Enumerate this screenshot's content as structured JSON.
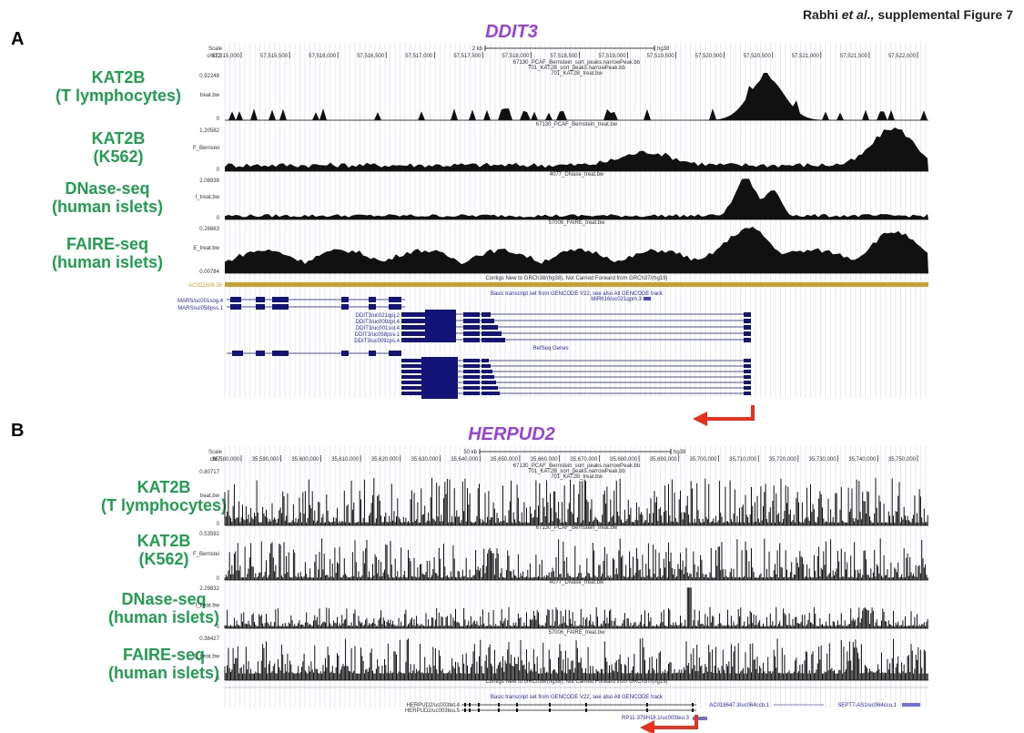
{
  "header": {
    "author": "Rabhi",
    "etal": "et al.,",
    "label": "supplemental Figure 7"
  },
  "panels": [
    {
      "letter": "A",
      "gene": "DDIT3",
      "chrom": "chr12:",
      "scale_label": "2 kb",
      "assembly": "hg38",
      "ticks": [
        "57,515,000",
        "57,515,500",
        "57,516,000",
        "57,516,500",
        "57,517,000",
        "57,517,500",
        "57,518,000",
        "57,518,500",
        "57,519,000",
        "57,519,500",
        "57,520,000",
        "57,520,500",
        "57,521,000",
        "57,521,500",
        "57,522,000"
      ],
      "header_lines": [
        "67130_PCAF_Bernstein_sort_peaks.narrowPeak.bb",
        "701_KAT2B_sort_peaks.narrowPeak.bb",
        "701_KAT2B_treat.bw"
      ],
      "tracks": [
        {
          "name": "KAT2B",
          "sub": "(T lymphocytes)",
          "max": "0.92248",
          "min": "0",
          "file": "701_KAT2B_treat.bw",
          "side": "treat.bw"
        },
        {
          "name": "KAT2B",
          "sub": "(K562)",
          "max": "1.20582",
          "min": "0",
          "file": "67130_PCAF_Bernstein_treat.bw",
          "side": "F_Bernstei"
        },
        {
          "name": "DNase-seq",
          "sub": "(human islets)",
          "max": "2.08938",
          "min": "0",
          "file": "4077_DNase_treat.bw",
          "side": "I_treat.bw"
        },
        {
          "name": "FAIRE-seq",
          "sub": "(human islets)",
          "max": "0.26663",
          "min": "0.00784",
          "file": "57006_FAIRE_treat.bw",
          "side": "E_treat.bw"
        }
      ],
      "contig_text": "Contigs New to GRCh38/(hg38), Not Carried Forward from GRCh37/(hg19)",
      "contig_id": "AC022506.35",
      "gencode_text": "Basic transcript set from GENCODE V22, see also All GENCODE track",
      "refseq_text": "RefSeq Genes",
      "mir_label": "MIR616/uc021qpm.3",
      "left_transcripts": [
        "MARS/uc001sog.4",
        "MARS/uc058pss.1"
      ],
      "ddit_transcripts": [
        "DDIT3/uc021qpj.2",
        "DDIT3/uc009zpt.4",
        "DDIT3/uc001sol.4",
        "DDIT3/uc058psv.1",
        "DDIT3/uc009zps.4"
      ]
    },
    {
      "letter": "B",
      "gene": "HERPUD2",
      "chrom": "chr7:",
      "scale_label": "50 kb",
      "assembly": "hg38",
      "ticks": [
        "35,580,000",
        "35,590,000",
        "35,600,000",
        "35,610,000",
        "35,620,000",
        "35,630,000",
        "35,640,000",
        "35,650,000",
        "35,660,000",
        "35,670,000",
        "35,680,000",
        "35,690,000",
        "35,700,000",
        "35,710,000",
        "35,720,000",
        "35,730,000",
        "35,740,000",
        "35,750,000"
      ],
      "header_lines": [
        "67130_PCAF_Bernstein_sort_peaks.narrowPeak.bb",
        "701_KAT2B_sort_peaks.narrowPeak.bb",
        "701_KAT2B_treat.bw"
      ],
      "tracks": [
        {
          "name": "KAT2B",
          "sub": "(T lymphocytes)",
          "max": "0.80717",
          "min": "0",
          "file": "701_KAT2B_treat.bw",
          "side": "treat.bw"
        },
        {
          "name": "KAT2B",
          "sub": "(K562)",
          "max": "0.53592",
          "min": "0",
          "file": "67130_PCAF_Bernstein_treat.bw",
          "side": "F_Bernstei"
        },
        {
          "name": "DNase-seq",
          "sub": "(human islets)",
          "max": "2.29832",
          "min": "0",
          "file": "4077_DNase_treat.bw",
          "side": "I_treat.bw"
        },
        {
          "name": "FAIRE-seq",
          "sub": "(human islets)",
          "max": "0.38427",
          "min": "0",
          "file": "57006_FAIRE_treat.bw",
          "side": "E_treat.bw"
        }
      ],
      "contig_text": "Contigs New to GRCh38/(hg38), Not Carried Forward from GRCh37/(hg19)",
      "gencode_text": "Basic transcript set from GENCODE V22, see also All GENCODE track",
      "left_transcripts": [
        "HERPUD2/uc003tet.4",
        "HERPUD2/uc003teu.5"
      ],
      "extra_labels": [
        "AC018647.3/uc064ccb.1",
        "SEPT7-AS1/uc064ccu.1",
        "RP11-379H18.1/uc003teu.3"
      ]
    }
  ],
  "colors": {
    "gene_title": "#9b3fe0",
    "track_label": "#1f9f4f",
    "gene_model": "#141478",
    "arrow": "#e8321e",
    "contig": "#c8a030"
  }
}
